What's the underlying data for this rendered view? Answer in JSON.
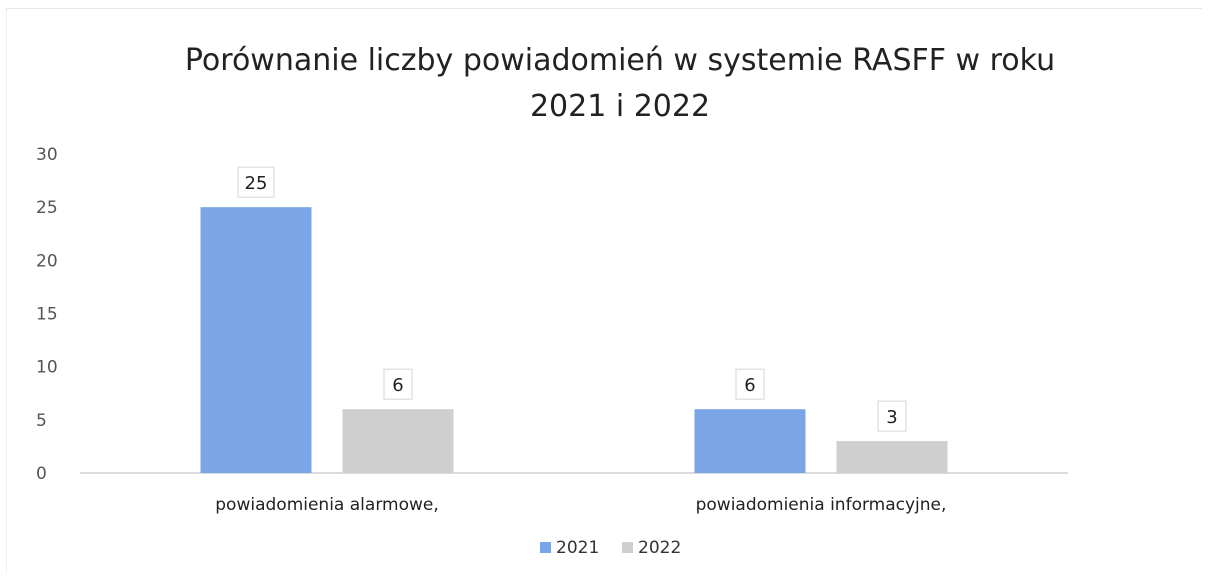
{
  "chart_data": {
    "type": "bar",
    "title": "Porównanie liczby powiadomień w systemie RASFF w roku 2021 i 2022",
    "title_lines": [
      "Porównanie liczby powiadomień w systemie RASFF w roku",
      "2021 i 2022"
    ],
    "categories": [
      "powiadomienia alarmowe,",
      "powiadomienia informacyjne,"
    ],
    "series": [
      {
        "name": "2021",
        "values": [
          25,
          6
        ],
        "color": "#7aa6e8"
      },
      {
        "name": "2022",
        "values": [
          6,
          3
        ],
        "color": "#cfcfcf"
      }
    ],
    "ylim": [
      0,
      30
    ],
    "yticks": [
      0,
      5,
      10,
      15,
      20,
      25,
      30
    ],
    "xlabel": "",
    "ylabel": "",
    "legend": "bottom",
    "grid": false
  }
}
